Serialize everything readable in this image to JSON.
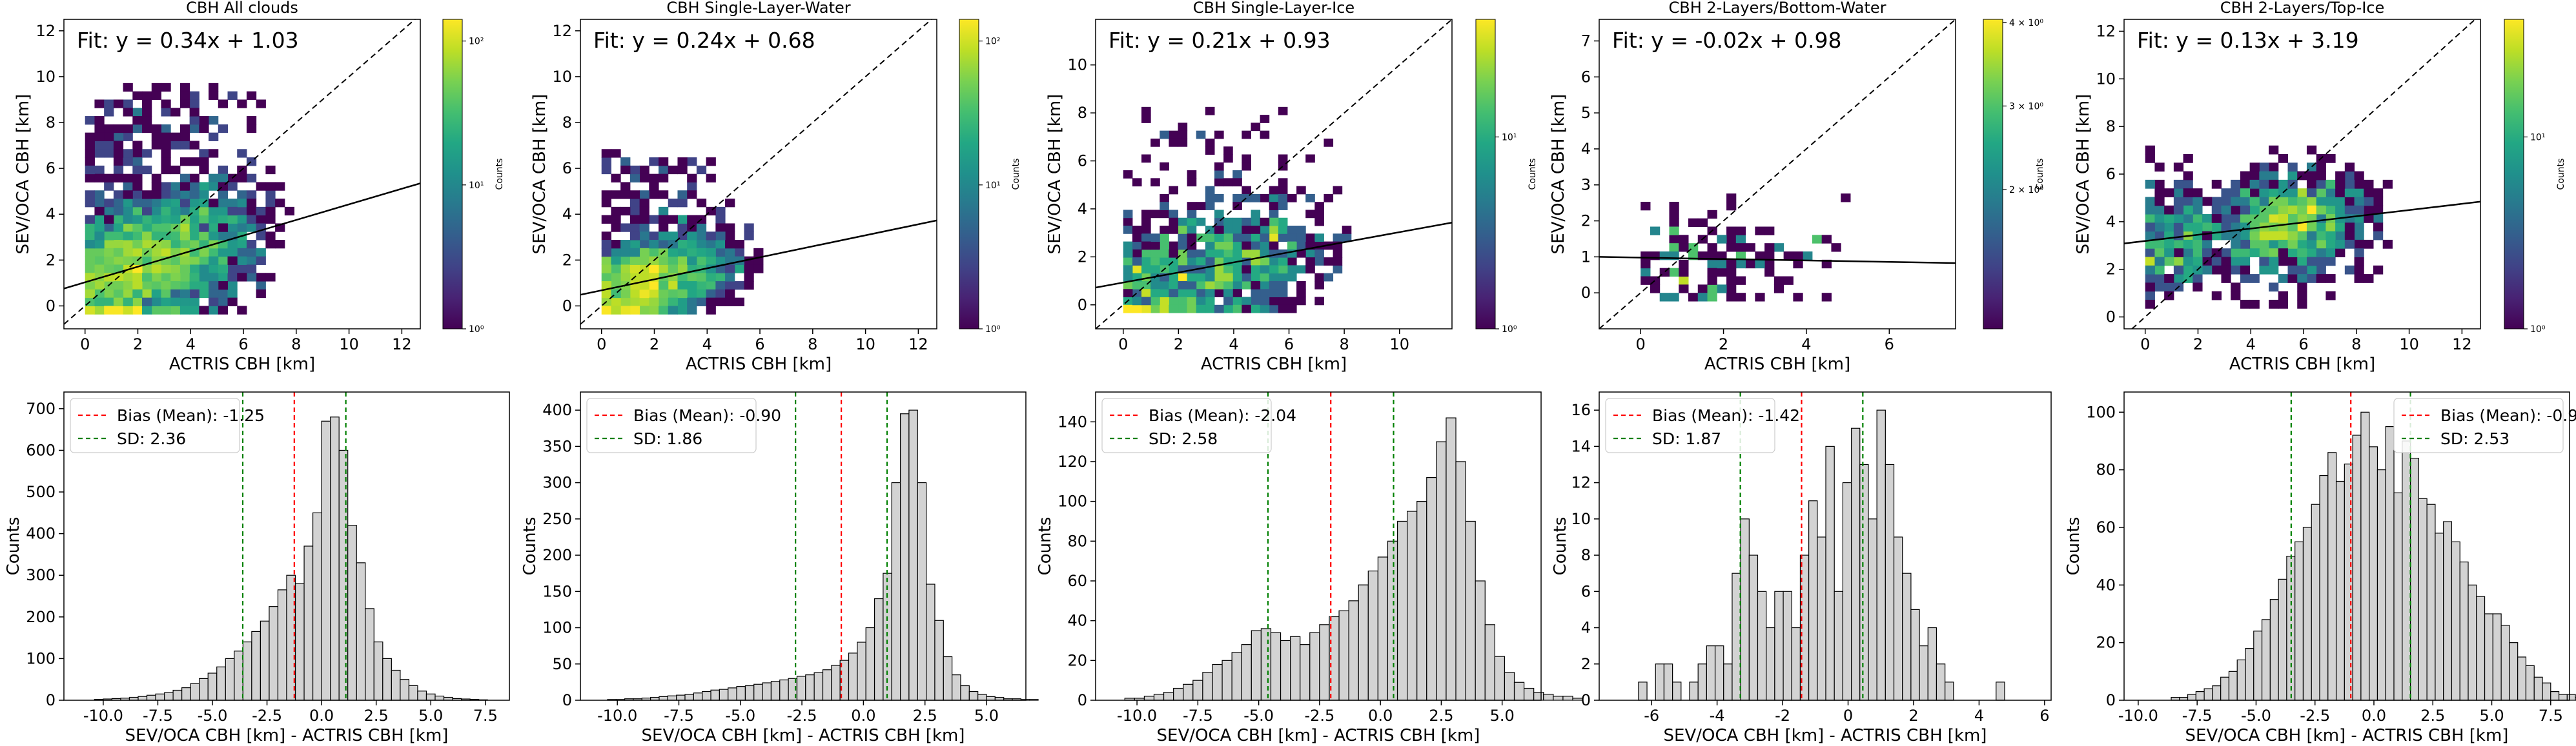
{
  "chart_data": [
    {
      "type": "heatmap",
      "title": "CBH All clouds",
      "xlabel": "ACTRIS CBH [km]",
      "ylabel": "SEV/OCA CBH [km]",
      "xlim": [
        -0.8,
        12.7
      ],
      "ylim": [
        -1.0,
        12.5
      ],
      "xticks": [
        "0",
        "2",
        "4",
        "6",
        "8",
        "10",
        "12"
      ],
      "yticks": [
        "0",
        "2",
        "4",
        "6",
        "8",
        "10",
        "12"
      ],
      "fit_text": "Fit: y = 0.34x + 1.03",
      "fit": {
        "slope": 0.34,
        "intercept": 1.03
      },
      "colorbar_label": "Counts",
      "colorbar_ticks": [
        "10⁰",
        "10¹",
        "10²"
      ],
      "grid": false,
      "point_cloud": {
        "seed": 11,
        "n": 2600,
        "x_center": 3.2,
        "x_spread": 2.4,
        "x_range": [
          0,
          10.6
        ],
        "y_range": [
          -0.3,
          9.5
        ],
        "noise": 1.7,
        "cell": 0.36
      }
    },
    {
      "type": "heatmap",
      "title": "CBH Single-Layer-Water",
      "xlabel": "ACTRIS CBH [km]",
      "ylabel": "SEV/OCA CBH [km]",
      "xlim": [
        -0.8,
        12.7
      ],
      "ylim": [
        -1.0,
        12.5
      ],
      "xticks": [
        "0",
        "2",
        "4",
        "6",
        "8",
        "10",
        "12"
      ],
      "yticks": [
        "0",
        "2",
        "4",
        "6",
        "8",
        "10",
        "12"
      ],
      "fit_text": "Fit: y = 0.24x + 0.68",
      "fit": {
        "slope": 0.24,
        "intercept": 0.68
      },
      "colorbar_label": "Counts",
      "colorbar_ticks": [
        "10⁰",
        "10¹",
        "10²"
      ],
      "grid": false,
      "point_cloud": {
        "seed": 23,
        "n": 1700,
        "x_center": 2.3,
        "x_spread": 2.0,
        "x_range": [
          0,
          10.6
        ],
        "y_range": [
          -0.3,
          6.5
        ],
        "noise": 1.1,
        "cell": 0.36
      }
    },
    {
      "type": "heatmap",
      "title": "CBH Single-Layer-Ice",
      "xlabel": "ACTRIS CBH [km]",
      "ylabel": "SEV/OCA CBH [km]",
      "xlim": [
        -1.0,
        11.9
      ],
      "ylim": [
        -1.0,
        11.9
      ],
      "xticks": [
        "0",
        "2",
        "4",
        "6",
        "8",
        "10"
      ],
      "yticks": [
        "0",
        "2",
        "4",
        "6",
        "8",
        "10"
      ],
      "fit_text": "Fit: y = 0.21x + 0.93",
      "fit": {
        "slope": 0.21,
        "intercept": 0.93
      },
      "colorbar_label": "Counts",
      "colorbar_ticks": [
        "10⁰",
        "10¹"
      ],
      "grid": false,
      "point_cloud": {
        "seed": 37,
        "n": 900,
        "x_center": 4.0,
        "x_spread": 2.6,
        "x_range": [
          0,
          10.0
        ],
        "y_range": [
          -0.3,
          8.2
        ],
        "noise": 1.5,
        "cell": 0.33
      }
    },
    {
      "type": "heatmap",
      "title": "CBH 2-Layers/Bottom-Water",
      "xlabel": "ACTRIS CBH [km]",
      "ylabel": "SEV/OCA CBH [km]",
      "xlim": [
        -1.0,
        7.6
      ],
      "ylim": [
        -1.0,
        7.6
      ],
      "xticks": [
        "0",
        "2",
        "4",
        "6"
      ],
      "yticks": [
        "0",
        "1",
        "2",
        "3",
        "4",
        "5",
        "6",
        "7"
      ],
      "fit_text": "Fit: y = -0.02x + 0.98",
      "fit": {
        "slope": -0.02,
        "intercept": 0.98
      },
      "colorbar_label": "Counts",
      "colorbar_ticks": [
        "2 × 10⁰",
        "3 × 10⁰",
        "4 × 10⁰"
      ],
      "grid": false,
      "point_cloud": {
        "seed": 53,
        "n": 130,
        "x_center": 2.3,
        "x_spread": 1.8,
        "x_range": [
          0,
          6.5
        ],
        "y_range": [
          -0.2,
          3.2
        ],
        "noise": 0.85,
        "cell": 0.23
      }
    },
    {
      "type": "heatmap",
      "title": "CBH 2-Layers/Top-Ice",
      "xlabel": "ACTRIS CBH [km]",
      "ylabel": "SEV/OCA CBH [km]",
      "xlim": [
        -0.8,
        12.7
      ],
      "ylim": [
        -0.5,
        12.5
      ],
      "xticks": [
        "0",
        "2",
        "4",
        "6",
        "8",
        "10",
        "12"
      ],
      "yticks": [
        "0",
        "2",
        "4",
        "6",
        "8",
        "10",
        "12"
      ],
      "fit_text": "Fit: y = 0.13x + 3.19",
      "fit": {
        "slope": 0.13,
        "intercept": 3.19
      },
      "colorbar_label": "Counts",
      "colorbar_ticks": [
        "10⁰",
        "10¹"
      ],
      "grid": false,
      "point_cloud": {
        "seed": 71,
        "n": 1100,
        "x_center": 5.4,
        "x_spread": 2.2,
        "x_range": [
          0,
          10.6
        ],
        "y_range": [
          0.6,
          7.0
        ],
        "noise": 1.2,
        "cell": 0.36
      }
    },
    {
      "type": "bar",
      "subtype": "histogram",
      "xlabel": "SEV/OCA CBH [km] - ACTRIS CBH [km]",
      "ylabel": "Counts",
      "xlim": [
        -11.8,
        8.6
      ],
      "ylim": [
        0,
        740
      ],
      "xticks": [
        "-10.0",
        "-7.5",
        "-5.0",
        "-2.5",
        "0.0",
        "2.5",
        "5.0",
        "7.5"
      ],
      "yticks": [
        "0",
        "100",
        "200",
        "300",
        "400",
        "500",
        "600",
        "700"
      ],
      "bias": -1.25,
      "sd": 2.36,
      "legend": [
        "Bias (Mean): -1.25",
        "SD: 2.36"
      ],
      "legend_position": "upper-left",
      "hist": {
        "x0": -10.4,
        "width": 0.4,
        "counts": [
          2,
          3,
          4,
          5,
          7,
          9,
          12,
          15,
          18,
          24,
          30,
          40,
          52,
          65,
          80,
          100,
          118,
          140,
          165,
          190,
          225,
          265,
          300,
          280,
          370,
          450,
          670,
          680,
          600,
          420,
          330,
          220,
          140,
          100,
          72,
          50,
          35,
          22,
          15,
          10,
          7,
          4,
          3,
          2,
          1
        ]
      }
    },
    {
      "type": "bar",
      "subtype": "histogram",
      "xlabel": "SEV/OCA CBH [km] - ACTRIS CBH [km]",
      "ylabel": "Counts",
      "xlim": [
        -11.5,
        6.6
      ],
      "ylim": [
        0,
        425
      ],
      "xticks": [
        "-10.0",
        "-7.5",
        "-5.0",
        "-2.5",
        "0.0",
        "2.5",
        "5.0"
      ],
      "yticks": [
        "0",
        "50",
        "100",
        "150",
        "200",
        "250",
        "300",
        "350",
        "400"
      ],
      "bias": -0.9,
      "sd": 1.86,
      "legend": [
        "Bias (Mean): -0.90",
        "SD: 1.86"
      ],
      "legend_position": "upper-left",
      "hist": {
        "x0": -10.4,
        "width": 0.35,
        "counts": [
          1,
          1,
          2,
          2,
          3,
          4,
          5,
          6,
          7,
          8,
          10,
          12,
          14,
          15,
          17,
          19,
          20,
          22,
          24,
          26,
          28,
          30,
          33,
          35,
          38,
          42,
          48,
          55,
          65,
          80,
          100,
          140,
          175,
          300,
          395,
          400,
          300,
          160,
          110,
          60,
          35,
          20,
          12,
          8,
          5,
          4,
          2,
          2,
          1,
          1
        ]
      }
    },
    {
      "type": "bar",
      "subtype": "histogram",
      "xlabel": "SEV/OCA CBH [km] - ACTRIS CBH [km]",
      "ylabel": "Counts",
      "xlim": [
        -11.7,
        6.6
      ],
      "ylim": [
        0,
        155
      ],
      "xticks": [
        "-10.0",
        "-7.5",
        "-5.0",
        "-2.5",
        "0.0",
        "2.5",
        "5.0"
      ],
      "yticks": [
        "0",
        "20",
        "40",
        "60",
        "80",
        "100",
        "120",
        "140"
      ],
      "bias": -2.04,
      "sd": 2.58,
      "legend": [
        "Bias (Mean): -2.04",
        "SD: 2.58"
      ],
      "legend_position": "upper-left",
      "hist": {
        "x0": -10.5,
        "width": 0.4,
        "counts": [
          1,
          1,
          2,
          3,
          4,
          6,
          8,
          10,
          14,
          18,
          20,
          24,
          28,
          35,
          36,
          34,
          30,
          32,
          28,
          34,
          38,
          42,
          45,
          50,
          58,
          65,
          72,
          80,
          90,
          95,
          100,
          112,
          130,
          142,
          120,
          90,
          60,
          38,
          22,
          14,
          9,
          6,
          4,
          3,
          2,
          2,
          1
        ]
      }
    },
    {
      "type": "bar",
      "subtype": "histogram",
      "xlabel": "SEV/OCA CBH [km] - ACTRIS CBH [km]",
      "ylabel": "Counts",
      "xlim": [
        -7.6,
        6.2
      ],
      "ylim": [
        0,
        17
      ],
      "xticks": [
        "-6",
        "-4",
        "-2",
        "0",
        "2",
        "4",
        "6"
      ],
      "yticks": [
        "0",
        "2",
        "4",
        "6",
        "8",
        "10",
        "12",
        "14",
        "16"
      ],
      "bias": -1.42,
      "sd": 1.87,
      "legend": [
        "Bias (Mean): -1.42",
        "SD: 1.87"
      ],
      "legend_position": "upper-left",
      "hist": {
        "x0": -6.4,
        "width": 0.26,
        "counts": [
          1,
          0,
          2,
          2,
          1,
          0,
          1,
          2,
          3,
          3,
          2,
          7,
          10,
          8,
          6,
          4,
          6,
          6,
          4,
          8,
          11,
          9,
          14,
          6,
          12,
          15,
          13,
          10,
          16,
          13,
          9,
          7,
          5,
          3,
          4,
          2,
          1,
          0,
          0,
          0,
          0,
          0,
          1
        ]
      }
    },
    {
      "type": "bar",
      "subtype": "histogram",
      "xlabel": "SEV/OCA CBH [km] - ACTRIS CBH [km]",
      "ylabel": "Counts",
      "xlim": [
        -10.6,
        8.3
      ],
      "ylim": [
        0,
        107
      ],
      "xticks": [
        "-10.0",
        "-7.5",
        "-5.0",
        "-2.5",
        "0.0",
        "2.5",
        "5.0",
        "7.5"
      ],
      "yticks": [
        "0",
        "20",
        "40",
        "60",
        "80",
        "100"
      ],
      "bias": -0.98,
      "sd": 2.53,
      "legend": [
        "Bias (Mean): -0.98",
        "SD: 2.53"
      ],
      "legend_position": "upper-right",
      "hist": {
        "x0": -8.6,
        "width": 0.35,
        "counts": [
          1,
          1,
          2,
          3,
          4,
          5,
          8,
          10,
          14,
          18,
          24,
          28,
          35,
          42,
          50,
          55,
          60,
          68,
          78,
          86,
          76,
          82,
          92,
          100,
          88,
          80,
          95,
          72,
          90,
          84,
          70,
          68,
          58,
          62,
          55,
          48,
          40,
          36,
          30,
          30,
          26,
          20,
          15,
          12,
          8,
          6,
          3,
          2,
          2,
          1
        ]
      }
    }
  ]
}
